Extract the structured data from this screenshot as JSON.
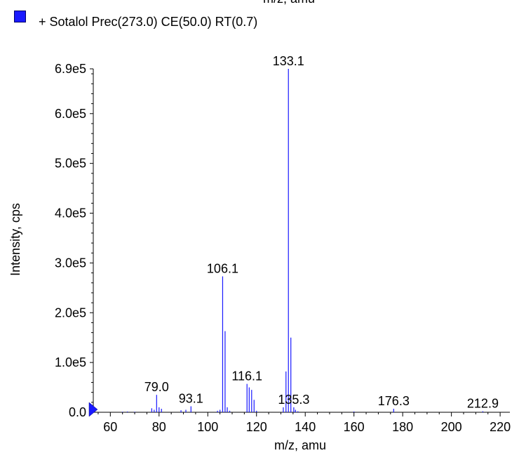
{
  "top_cut_label": "m/z, amu",
  "legend": {
    "text": "+ Sotalol Prec(273.0) CE(50.0) RT(0.7)",
    "color": "#1a1aff"
  },
  "chart_data": {
    "type": "bar",
    "xlabel": "m/z, amu",
    "ylabel": "Intensity, cps",
    "xlim": [
      53,
      224
    ],
    "ylim": [
      0,
      690000
    ],
    "x_ticks": [
      60,
      80,
      100,
      120,
      140,
      160,
      180,
      200,
      220
    ],
    "y_ticks": [
      {
        "value": 0,
        "label": "0.0"
      },
      {
        "value": 100000,
        "label": "1.0e5"
      },
      {
        "value": 200000,
        "label": "2.0e5"
      },
      {
        "value": 300000,
        "label": "3.0e5"
      },
      {
        "value": 400000,
        "label": "4.0e5"
      },
      {
        "value": 500000,
        "label": "5.0e5"
      },
      {
        "value": 600000,
        "label": "6.0e5"
      },
      {
        "value": 690000,
        "label": "6.9e5"
      }
    ],
    "series_color": "#1a1aff",
    "peaks": [
      {
        "x": 65.0,
        "y": 1000
      },
      {
        "x": 67.0,
        "y": 1500
      },
      {
        "x": 70.0,
        "y": 1000
      },
      {
        "x": 77.0,
        "y": 8000
      },
      {
        "x": 78.0,
        "y": 5000
      },
      {
        "x": 79.0,
        "y": 35000,
        "label": "79.0"
      },
      {
        "x": 80.0,
        "y": 10000
      },
      {
        "x": 81.0,
        "y": 7000
      },
      {
        "x": 89.0,
        "y": 4000
      },
      {
        "x": 91.0,
        "y": 5000
      },
      {
        "x": 93.1,
        "y": 12000,
        "label": "93.1"
      },
      {
        "x": 104.0,
        "y": 3000
      },
      {
        "x": 105.0,
        "y": 5000
      },
      {
        "x": 106.1,
        "y": 273000,
        "label": "106.1"
      },
      {
        "x": 107.1,
        "y": 163000
      },
      {
        "x": 108.0,
        "y": 10000
      },
      {
        "x": 109.0,
        "y": 3000
      },
      {
        "x": 116.1,
        "y": 57000,
        "label": "116.1"
      },
      {
        "x": 117.0,
        "y": 50000
      },
      {
        "x": 118.0,
        "y": 45000
      },
      {
        "x": 119.0,
        "y": 25000
      },
      {
        "x": 120.0,
        "y": 3000
      },
      {
        "x": 131.0,
        "y": 10000
      },
      {
        "x": 132.1,
        "y": 82000
      },
      {
        "x": 133.1,
        "y": 690000,
        "label": "133.1"
      },
      {
        "x": 134.1,
        "y": 150000
      },
      {
        "x": 135.3,
        "y": 10000,
        "label": "135.3"
      },
      {
        "x": 136.0,
        "y": 5000
      },
      {
        "x": 137.0,
        "y": 2000
      },
      {
        "x": 160.0,
        "y": 1500
      },
      {
        "x": 176.3,
        "y": 7000,
        "label": "176.3"
      },
      {
        "x": 212.9,
        "y": 2000,
        "label": "212.9"
      }
    ]
  }
}
